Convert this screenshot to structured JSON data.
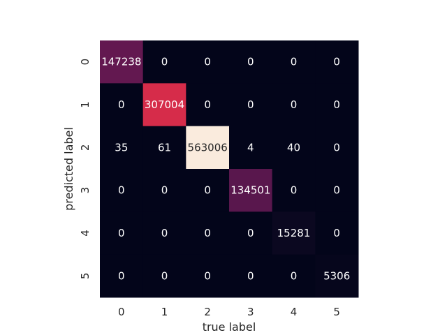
{
  "chart_data": {
    "type": "heatmap",
    "title": "",
    "xlabel": "true label",
    "ylabel": "predicted label",
    "x_categories": [
      "0",
      "1",
      "2",
      "3",
      "4",
      "5"
    ],
    "y_categories": [
      "0",
      "1",
      "2",
      "3",
      "4",
      "5"
    ],
    "matrix": [
      [
        147238,
        0,
        0,
        0,
        0,
        0
      ],
      [
        0,
        307004,
        0,
        0,
        0,
        0
      ],
      [
        35,
        61,
        563006,
        4,
        40,
        0
      ],
      [
        0,
        0,
        0,
        134501,
        0,
        0
      ],
      [
        0,
        0,
        0,
        0,
        15281,
        0
      ],
      [
        0,
        0,
        0,
        0,
        0,
        5306
      ]
    ],
    "colormap": "rocket",
    "colorbar": false,
    "annotated": true,
    "grid": false
  }
}
